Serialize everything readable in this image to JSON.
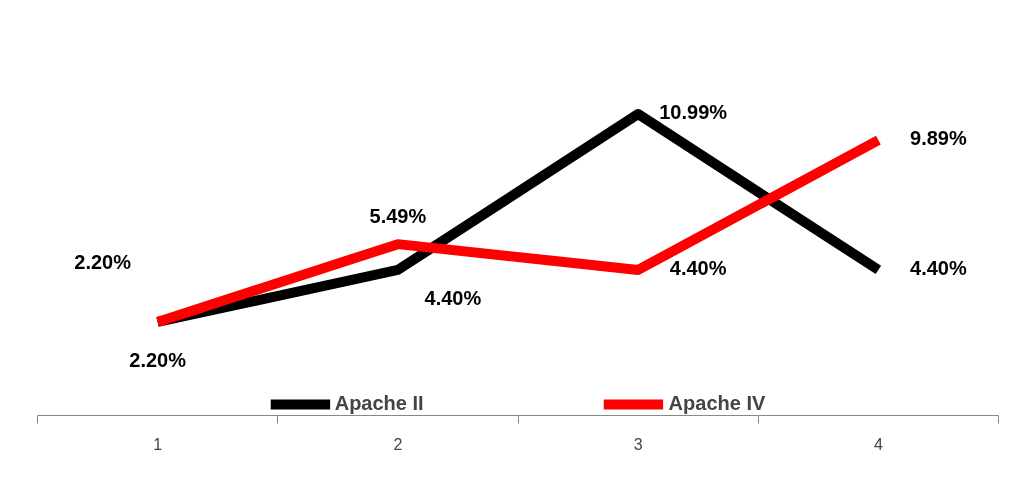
{
  "chart_data": {
    "type": "line",
    "categories": [
      "1",
      "2",
      "3",
      "4"
    ],
    "series": [
      {
        "name": "Apache II",
        "color": "#000000",
        "values": [
          2.2,
          4.4,
          10.99,
          4.4
        ],
        "value_labels": [
          "2.20%",
          "4.40%",
          "10.99%",
          "4.40%"
        ]
      },
      {
        "name": "Apache IV",
        "color": "#ff0000",
        "values": [
          2.2,
          5.49,
          4.4,
          9.89
        ],
        "value_labels": [
          "2.20%",
          "5.49%",
          "4.40%",
          "9.89%"
        ]
      }
    ],
    "legend": "bottom",
    "line_style": "solid"
  }
}
